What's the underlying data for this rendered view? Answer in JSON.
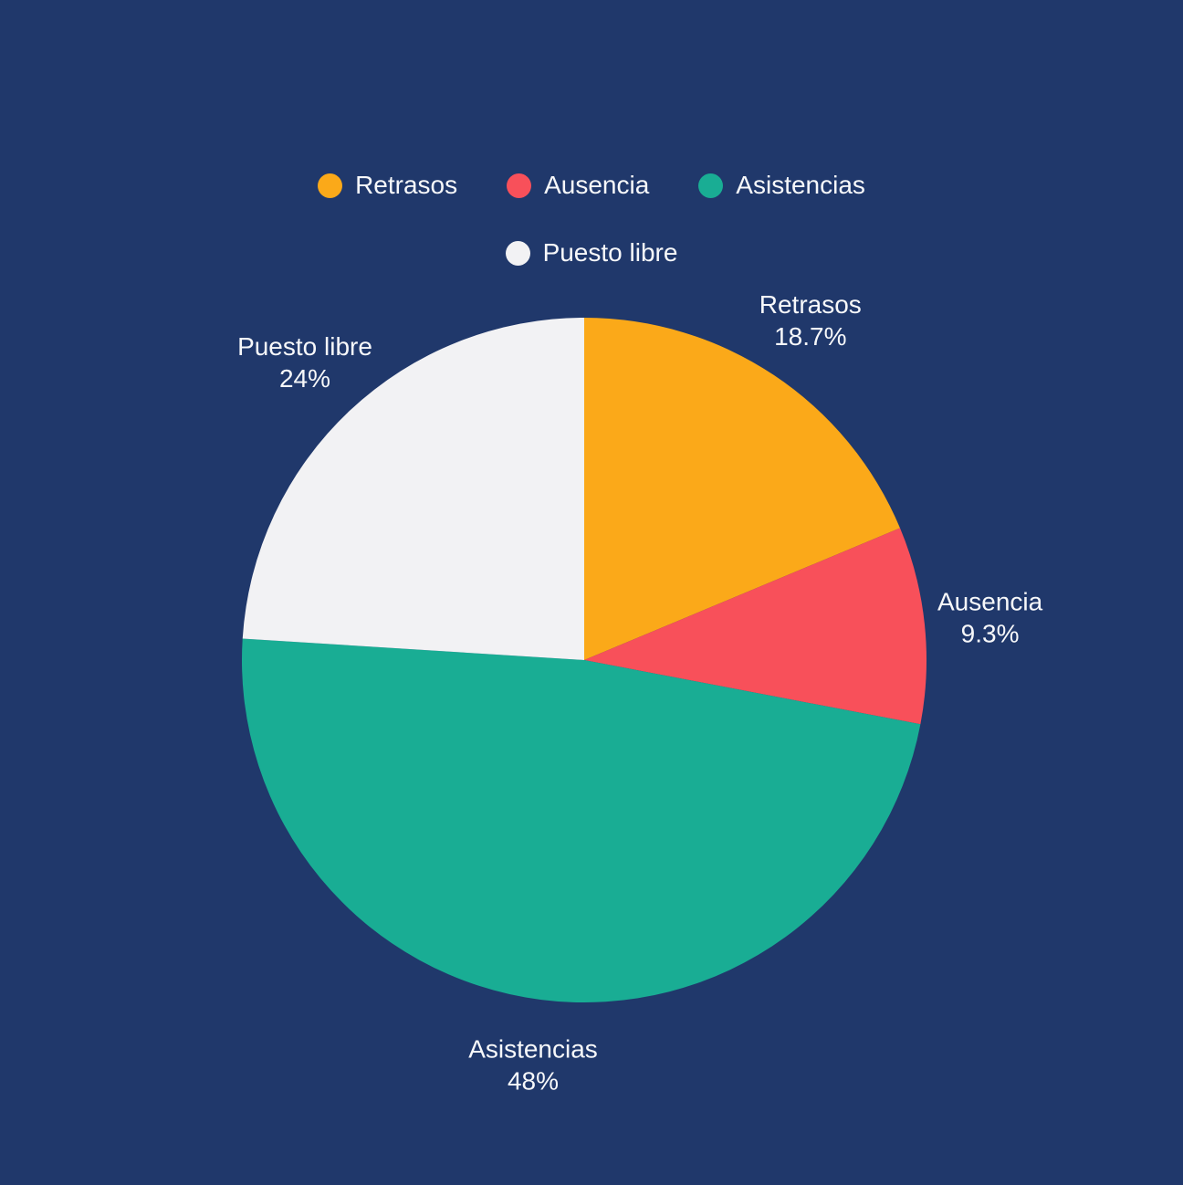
{
  "page": {
    "background": "#20386B",
    "text_color": "#F7F8FA"
  },
  "chart_data": {
    "type": "pie",
    "title": "",
    "categories": [
      "Retrasos",
      "Ausencia",
      "Asistencias",
      "Puesto libre"
    ],
    "values": [
      18.7,
      9.3,
      48,
      24
    ],
    "value_labels": [
      "18.7%",
      "9.3%",
      "48%",
      "24%"
    ],
    "colors": [
      "#FBA919",
      "#F8505A",
      "#19AD94",
      "#F2F2F4"
    ],
    "unit": "%",
    "start_angle": 0,
    "direction": "clockwise",
    "grid": false,
    "legend": {
      "position": "top",
      "items": [
        {
          "label": "Retrasos",
          "color": "#FBA919"
        },
        {
          "label": "Ausencia",
          "color": "#F8505A"
        },
        {
          "label": "Asistencias",
          "color": "#19AD94"
        },
        {
          "label": "Puesto libre",
          "color": "#F2F2F4"
        }
      ]
    },
    "slice_labels": [
      {
        "name": "Retrasos",
        "value": "18.7%"
      },
      {
        "name": "Ausencia",
        "value": "9.3%"
      },
      {
        "name": "Asistencias",
        "value": "48%"
      },
      {
        "name": "Puesto libre",
        "value": "24%"
      }
    ]
  }
}
